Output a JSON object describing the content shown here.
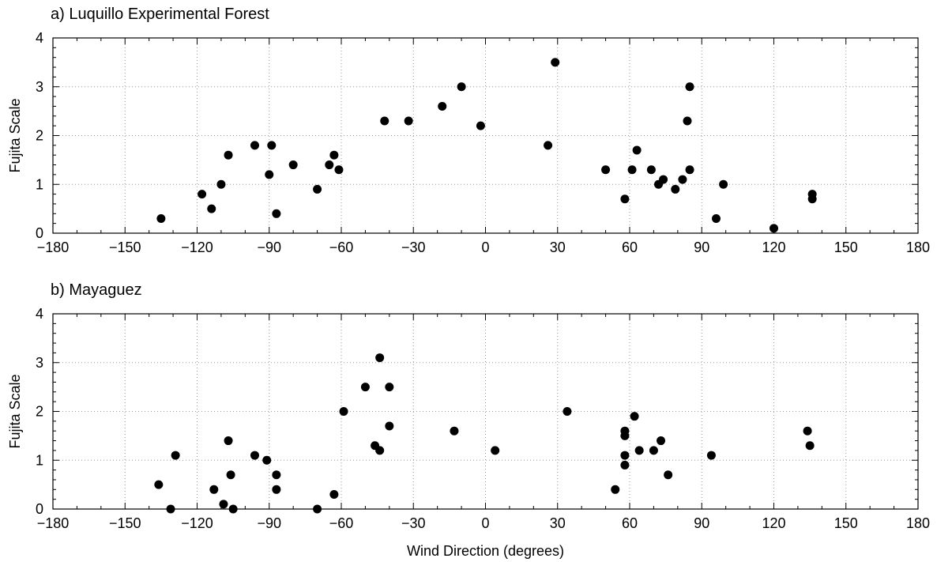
{
  "chart_data": [
    {
      "type": "scatter",
      "title": "a) Luquillo Experimental Forest",
      "xlabel": "",
      "ylabel": "Fujita Scale",
      "xlim": [
        -180,
        180
      ],
      "ylim": [
        0,
        4
      ],
      "xticks": [
        -180,
        -150,
        -120,
        -90,
        -60,
        -30,
        0,
        30,
        60,
        90,
        120,
        150,
        180
      ],
      "yticks": [
        0,
        1,
        2,
        3,
        4
      ],
      "grid": true,
      "marker_color": "#000000",
      "points": [
        [
          -135,
          0.3
        ],
        [
          -118,
          0.8
        ],
        [
          -114,
          0.5
        ],
        [
          -110,
          1.0
        ],
        [
          -107,
          1.6
        ],
        [
          -96,
          1.8
        ],
        [
          -90,
          1.2
        ],
        [
          -89,
          1.8
        ],
        [
          -87,
          0.4
        ],
        [
          -80,
          1.4
        ],
        [
          -70,
          0.9
        ],
        [
          -65,
          1.4
        ],
        [
          -63,
          1.6
        ],
        [
          -61,
          1.3
        ],
        [
          -42,
          2.3
        ],
        [
          -32,
          2.3
        ],
        [
          -18,
          2.6
        ],
        [
          -10,
          3.0
        ],
        [
          -2,
          2.2
        ],
        [
          26,
          1.8
        ],
        [
          29,
          3.5
        ],
        [
          50,
          1.3
        ],
        [
          58,
          0.7
        ],
        [
          61,
          1.3
        ],
        [
          63,
          1.7
        ],
        [
          69,
          1.3
        ],
        [
          72,
          1.0
        ],
        [
          74,
          1.1
        ],
        [
          79,
          0.9
        ],
        [
          82,
          1.1
        ],
        [
          84,
          2.3
        ],
        [
          85,
          3.0
        ],
        [
          85,
          1.3
        ],
        [
          96,
          0.3
        ],
        [
          99,
          1.0
        ],
        [
          120,
          0.1
        ],
        [
          136,
          0.8
        ],
        [
          136,
          0.7
        ]
      ]
    },
    {
      "type": "scatter",
      "title": "b) Mayaguez",
      "xlabel": "Wind Direction (degrees)",
      "ylabel": "Fujita Scale",
      "xlim": [
        -180,
        180
      ],
      "ylim": [
        0,
        4
      ],
      "xticks": [
        -180,
        -150,
        -120,
        -90,
        -60,
        -30,
        0,
        30,
        60,
        90,
        120,
        150,
        180
      ],
      "yticks": [
        0,
        1,
        2,
        3,
        4
      ],
      "grid": true,
      "marker_color": "#000000",
      "points": [
        [
          -136,
          0.5
        ],
        [
          -131,
          0.0
        ],
        [
          -129,
          1.1
        ],
        [
          -113,
          0.4
        ],
        [
          -109,
          0.1
        ],
        [
          -107,
          1.4
        ],
        [
          -106,
          0.7
        ],
        [
          -105,
          0.0
        ],
        [
          -96,
          1.1
        ],
        [
          -91,
          1.0
        ],
        [
          -87,
          0.7
        ],
        [
          -87,
          0.4
        ],
        [
          -70,
          0.0
        ],
        [
          -63,
          0.3
        ],
        [
          -59,
          2.0
        ],
        [
          -50,
          2.5
        ],
        [
          -46,
          1.3
        ],
        [
          -44,
          3.1
        ],
        [
          -44,
          1.2
        ],
        [
          -40,
          2.5
        ],
        [
          -40,
          1.7
        ],
        [
          -13,
          1.6
        ],
        [
          4,
          1.2
        ],
        [
          34,
          2.0
        ],
        [
          54,
          0.4
        ],
        [
          58,
          1.6
        ],
        [
          58,
          1.5
        ],
        [
          58,
          1.1
        ],
        [
          58,
          0.9
        ],
        [
          62,
          1.9
        ],
        [
          64,
          1.2
        ],
        [
          70,
          1.2
        ],
        [
          73,
          1.4
        ],
        [
          76,
          0.7
        ],
        [
          94,
          1.1
        ],
        [
          134,
          1.6
        ],
        [
          135,
          1.3
        ]
      ]
    }
  ]
}
